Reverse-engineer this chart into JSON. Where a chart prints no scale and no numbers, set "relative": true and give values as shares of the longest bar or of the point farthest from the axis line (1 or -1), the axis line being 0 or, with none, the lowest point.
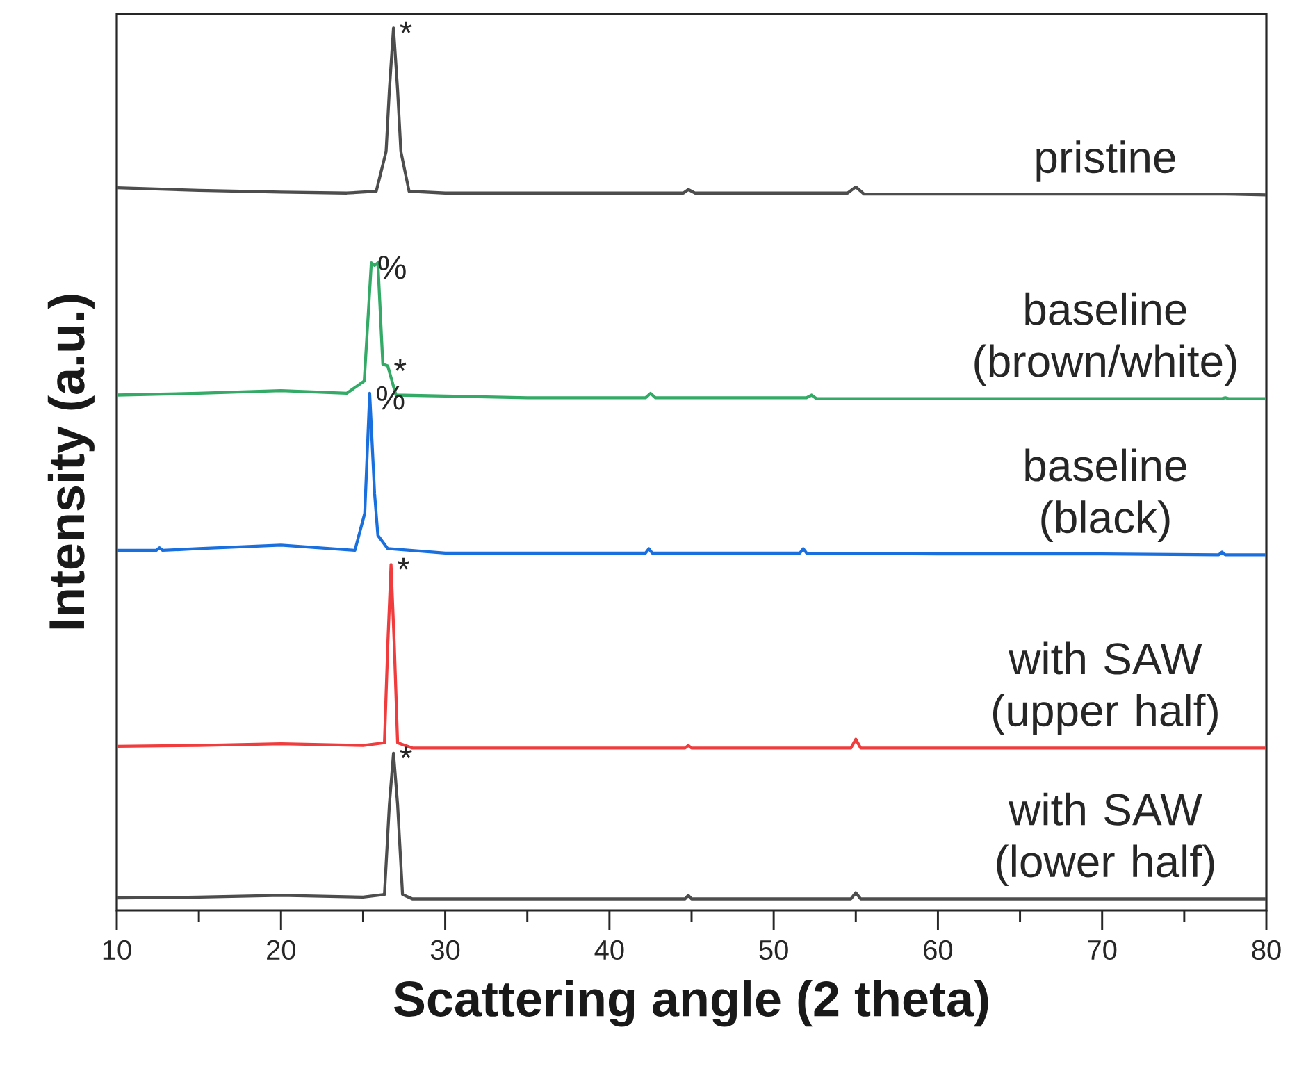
{
  "chart_data": {
    "type": "line",
    "relative": true,
    "xlabel": "Scattering angle (2 theta)",
    "ylabel": "Intensity (a.u.)",
    "xlim": [
      10,
      80
    ],
    "xticks": [
      10,
      {
        "value": 15,
        "label": null
      },
      20,
      {
        "value": 25,
        "label": null
      },
      30,
      {
        "value": 35,
        "label": null
      },
      40,
      {
        "value": 45,
        "label": null
      },
      50,
      {
        "value": 55,
        "label": null
      },
      60,
      {
        "value": 65,
        "label": null
      },
      70,
      {
        "value": 75,
        "label": null
      },
      80
    ],
    "series": [
      {
        "name": "pristine",
        "color": "#4d4d4d",
        "x": [
          10,
          15,
          20,
          24,
          25.8,
          26.4,
          26.6,
          26.85,
          27.1,
          27.3,
          27.8,
          30,
          40,
          44.5,
          44.8,
          45.2,
          54.5,
          55,
          55.5,
          60,
          70,
          77.5,
          80
        ],
        "values": [
          0.819,
          0.816,
          0.814,
          0.813,
          0.815,
          0.86,
          0.93,
          1.0,
          0.93,
          0.86,
          0.815,
          0.813,
          0.813,
          0.813,
          0.817,
          0.813,
          0.813,
          0.82,
          0.812,
          0.812,
          0.812,
          0.812,
          0.811
        ]
      },
      {
        "name": "baseline (brown/white)",
        "color": "#33aa66",
        "x": [
          10,
          15,
          20,
          24,
          25.07,
          25.5,
          25.7,
          25.9,
          26.2,
          26.5,
          27.0,
          30,
          35,
          42.2,
          42.5,
          42.8,
          52,
          52.3,
          52.6,
          60,
          70,
          77.3,
          77.5,
          77.7,
          80
        ],
        "values": [
          0.584,
          0.586,
          0.589,
          0.586,
          0.6,
          0.734,
          0.731,
          0.734,
          0.619,
          0.617,
          0.584,
          0.583,
          0.581,
          0.581,
          0.586,
          0.581,
          0.581,
          0.584,
          0.58,
          0.58,
          0.58,
          0.58,
          0.581,
          0.58,
          0.58
        ]
      },
      {
        "name": "baseline (black)",
        "color": "#1a6fdf",
        "x": [
          10,
          12.4,
          12.6,
          12.8,
          15,
          20,
          24.5,
          25.1,
          25.4,
          25.7,
          25.9,
          26.5,
          30,
          40,
          42.2,
          42.4,
          42.6,
          51.6,
          51.8,
          52.0,
          60,
          70,
          77.1,
          77.3,
          77.5,
          80
        ],
        "values": [
          0.408,
          0.408,
          0.411,
          0.408,
          0.41,
          0.414,
          0.408,
          0.45,
          0.586,
          0.472,
          0.425,
          0.41,
          0.405,
          0.405,
          0.405,
          0.41,
          0.405,
          0.405,
          0.41,
          0.405,
          0.404,
          0.404,
          0.403,
          0.406,
          0.403,
          0.403
        ]
      },
      {
        "name": "with SAW (upper half)",
        "color": "#f03c3c",
        "x": [
          10,
          15,
          20,
          25,
          26.3,
          26.5,
          26.7,
          26.9,
          27.1,
          28,
          40,
          44.6,
          44.8,
          45,
          54.7,
          55,
          55.3,
          60,
          70,
          80
        ],
        "values": [
          0.186,
          0.187,
          0.189,
          0.187,
          0.19,
          0.3,
          0.392,
          0.3,
          0.19,
          0.184,
          0.184,
          0.184,
          0.187,
          0.184,
          0.184,
          0.194,
          0.184,
          0.184,
          0.184,
          0.184
        ]
      },
      {
        "name": "with SAW (lower half)",
        "color": "#4d4d4d",
        "x": [
          10,
          15,
          20,
          25,
          26.3,
          26.6,
          26.85,
          27.1,
          27.4,
          28,
          40,
          44.6,
          44.8,
          45,
          54.7,
          55,
          55.3,
          60,
          70,
          80
        ],
        "values": [
          0.014,
          0.015,
          0.017,
          0.015,
          0.018,
          0.12,
          0.178,
          0.12,
          0.018,
          0.013,
          0.013,
          0.013,
          0.017,
          0.013,
          0.013,
          0.02,
          0.013,
          0.013,
          0.013,
          0.013
        ]
      }
    ],
    "annotations": [
      {
        "text": "*",
        "x": 26.85,
        "y": 1.0
      },
      {
        "text": "%",
        "x": 25.5,
        "y": 0.734
      },
      {
        "text": "*",
        "x": 26.5,
        "y": 0.617
      },
      {
        "text": "%",
        "x": 25.4,
        "y": 0.586
      },
      {
        "text": "*",
        "x": 26.7,
        "y": 0.392
      },
      {
        "text": "*",
        "x": 26.85,
        "y": 0.178
      }
    ]
  }
}
